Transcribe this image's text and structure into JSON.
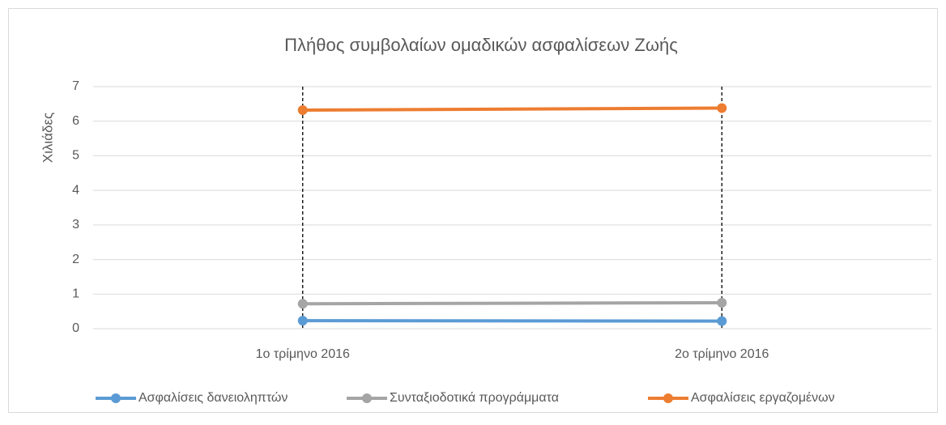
{
  "chart_data": {
    "type": "line",
    "title": "Πλήθος συμβολαίων ομαδικών ασφαλίσεων Ζωής",
    "ylabel": "Χιλιάδες",
    "categories": [
      "1ο τρίμηνο 2016",
      "2ο τρίμηνο 2016"
    ],
    "series": [
      {
        "name": "Ασφαλίσεις δανειοληπτών",
        "color": "#5b9bd5",
        "values": [
          0.23,
          0.22
        ]
      },
      {
        "name": "Συνταξιοδοτικά προγράμματα",
        "color": "#a5a5a5",
        "values": [
          0.72,
          0.75
        ]
      },
      {
        "name": "Ασφαλίσεις εργαζομένων",
        "color": "#ed7d31",
        "values": [
          6.32,
          6.38
        ]
      }
    ],
    "ylim": [
      0,
      7
    ],
    "yticks": [
      0,
      1,
      2,
      3,
      4,
      5,
      6,
      7
    ],
    "grid": true,
    "drop_lines": true,
    "legend": "bottom"
  }
}
